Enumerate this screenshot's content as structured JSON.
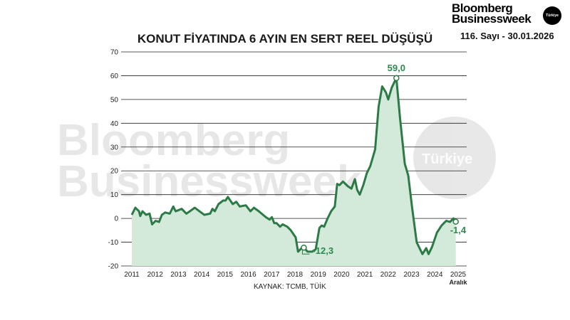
{
  "brand": {
    "line1": "Bloomberg",
    "line2": "Businessweek",
    "badge": "Türkiye",
    "issue": "116. Sayı - 30.01.2026"
  },
  "watermark": {
    "line1": "Bloomberg",
    "line2": "Businessweek",
    "badge": "Türkiye"
  },
  "source": "KAYNAK: TCMB, TÜİK",
  "colors": {
    "line": "#2c7a45",
    "fill": "#d3e9da",
    "grid": "#222222",
    "label": "#2c8a4e"
  },
  "chart_data": {
    "type": "area",
    "title": "KONUT FİYATINDA 6 AYIN EN SERT REEL DÜŞÜŞÜ",
    "xlabel": "",
    "ylabel": "",
    "ylim": [
      -20,
      70
    ],
    "xlim": [
      2011,
      2025
    ],
    "yticks": [
      70,
      60,
      50,
      40,
      30,
      20,
      10,
      0,
      -10,
      -20
    ],
    "ytick_labels": [
      "70",
      "60",
      "50",
      "40",
      "30",
      "20",
      "10",
      "0",
      "-10",
      "-20"
    ],
    "xticks": [
      2011,
      2012,
      2013,
      2014,
      2015,
      2016,
      2017,
      2018,
      2019,
      2020,
      2021,
      2022,
      2023,
      2024,
      2025
    ],
    "xtick_labels": [
      "2011",
      "2012",
      "2013",
      "2014",
      "2015",
      "2016",
      "2017",
      "2018",
      "2019",
      "2020",
      "2021",
      "2022",
      "2023",
      "2024",
      "2025"
    ],
    "xtick_sublabel": "Aralık",
    "grid": true,
    "x": [
      2011.0,
      2011.15,
      2011.31,
      2011.36,
      2011.46,
      2011.61,
      2011.76,
      2011.87,
      2012.02,
      2012.17,
      2012.29,
      2012.43,
      2012.63,
      2012.78,
      2012.88,
      2013.14,
      2013.34,
      2013.49,
      2013.7,
      2013.9,
      2014.11,
      2014.36,
      2014.46,
      2014.56,
      2014.72,
      2014.92,
      2015.02,
      2015.12,
      2015.33,
      2015.48,
      2015.63,
      2015.89,
      2016.09,
      2016.24,
      2016.45,
      2016.75,
      2016.91,
      2017.01,
      2017.11,
      2017.21,
      2017.36,
      2017.47,
      2017.67,
      2017.82,
      2018.03,
      2018.13,
      2018.28,
      2018.38,
      2018.54,
      2018.74,
      2018.89,
      2019.05,
      2019.15,
      2019.25,
      2019.4,
      2019.55,
      2019.71,
      2019.81,
      2019.91,
      2020.06,
      2020.27,
      2020.42,
      2020.57,
      2020.67,
      2020.78,
      2020.93,
      2021.08,
      2021.23,
      2021.44,
      2021.59,
      2021.74,
      2021.9,
      2022.0,
      2022.15,
      2022.35,
      2022.51,
      2022.71,
      2022.86,
      2023.02,
      2023.22,
      2023.47,
      2023.63,
      2023.73,
      2023.88,
      2024.09,
      2024.29,
      2024.49,
      2024.65,
      2024.8,
      2024.9
    ],
    "values": [
      1.5,
      4.5,
      3,
      1,
      3,
      1.5,
      2,
      -2.5,
      -1,
      -1.5,
      1.5,
      2.5,
      2,
      5,
      3,
      4,
      2,
      3,
      4.5,
      3,
      1.5,
      2,
      4,
      3,
      6,
      7.5,
      7.5,
      9,
      6,
      7,
      5,
      5.5,
      3,
      4.5,
      3,
      0.5,
      -0.5,
      0.5,
      -2,
      -2,
      -3.5,
      -2.5,
      -3.5,
      -5,
      -8,
      -14,
      -12.5,
      -12.3,
      -14,
      -14,
      -13,
      -4,
      -3,
      -3.5,
      0,
      3,
      5,
      14.5,
      14,
      15.5,
      13.5,
      12.5,
      16.5,
      12,
      10,
      14,
      19,
      22,
      29,
      47,
      55.5,
      53,
      50,
      55,
      59,
      42,
      23,
      18,
      5,
      -10,
      -15,
      -12.5,
      -15,
      -12,
      -6,
      -3,
      -1,
      -1.5,
      0,
      -1.4
    ],
    "annotations": [
      {
        "x": 2022.35,
        "y": 59.0,
        "label": "59,0"
      },
      {
        "x": 2018.38,
        "y": -12.3,
        "label": "-12,3"
      },
      {
        "x": 2024.9,
        "y": -1.4,
        "label": "-1,4"
      }
    ]
  }
}
